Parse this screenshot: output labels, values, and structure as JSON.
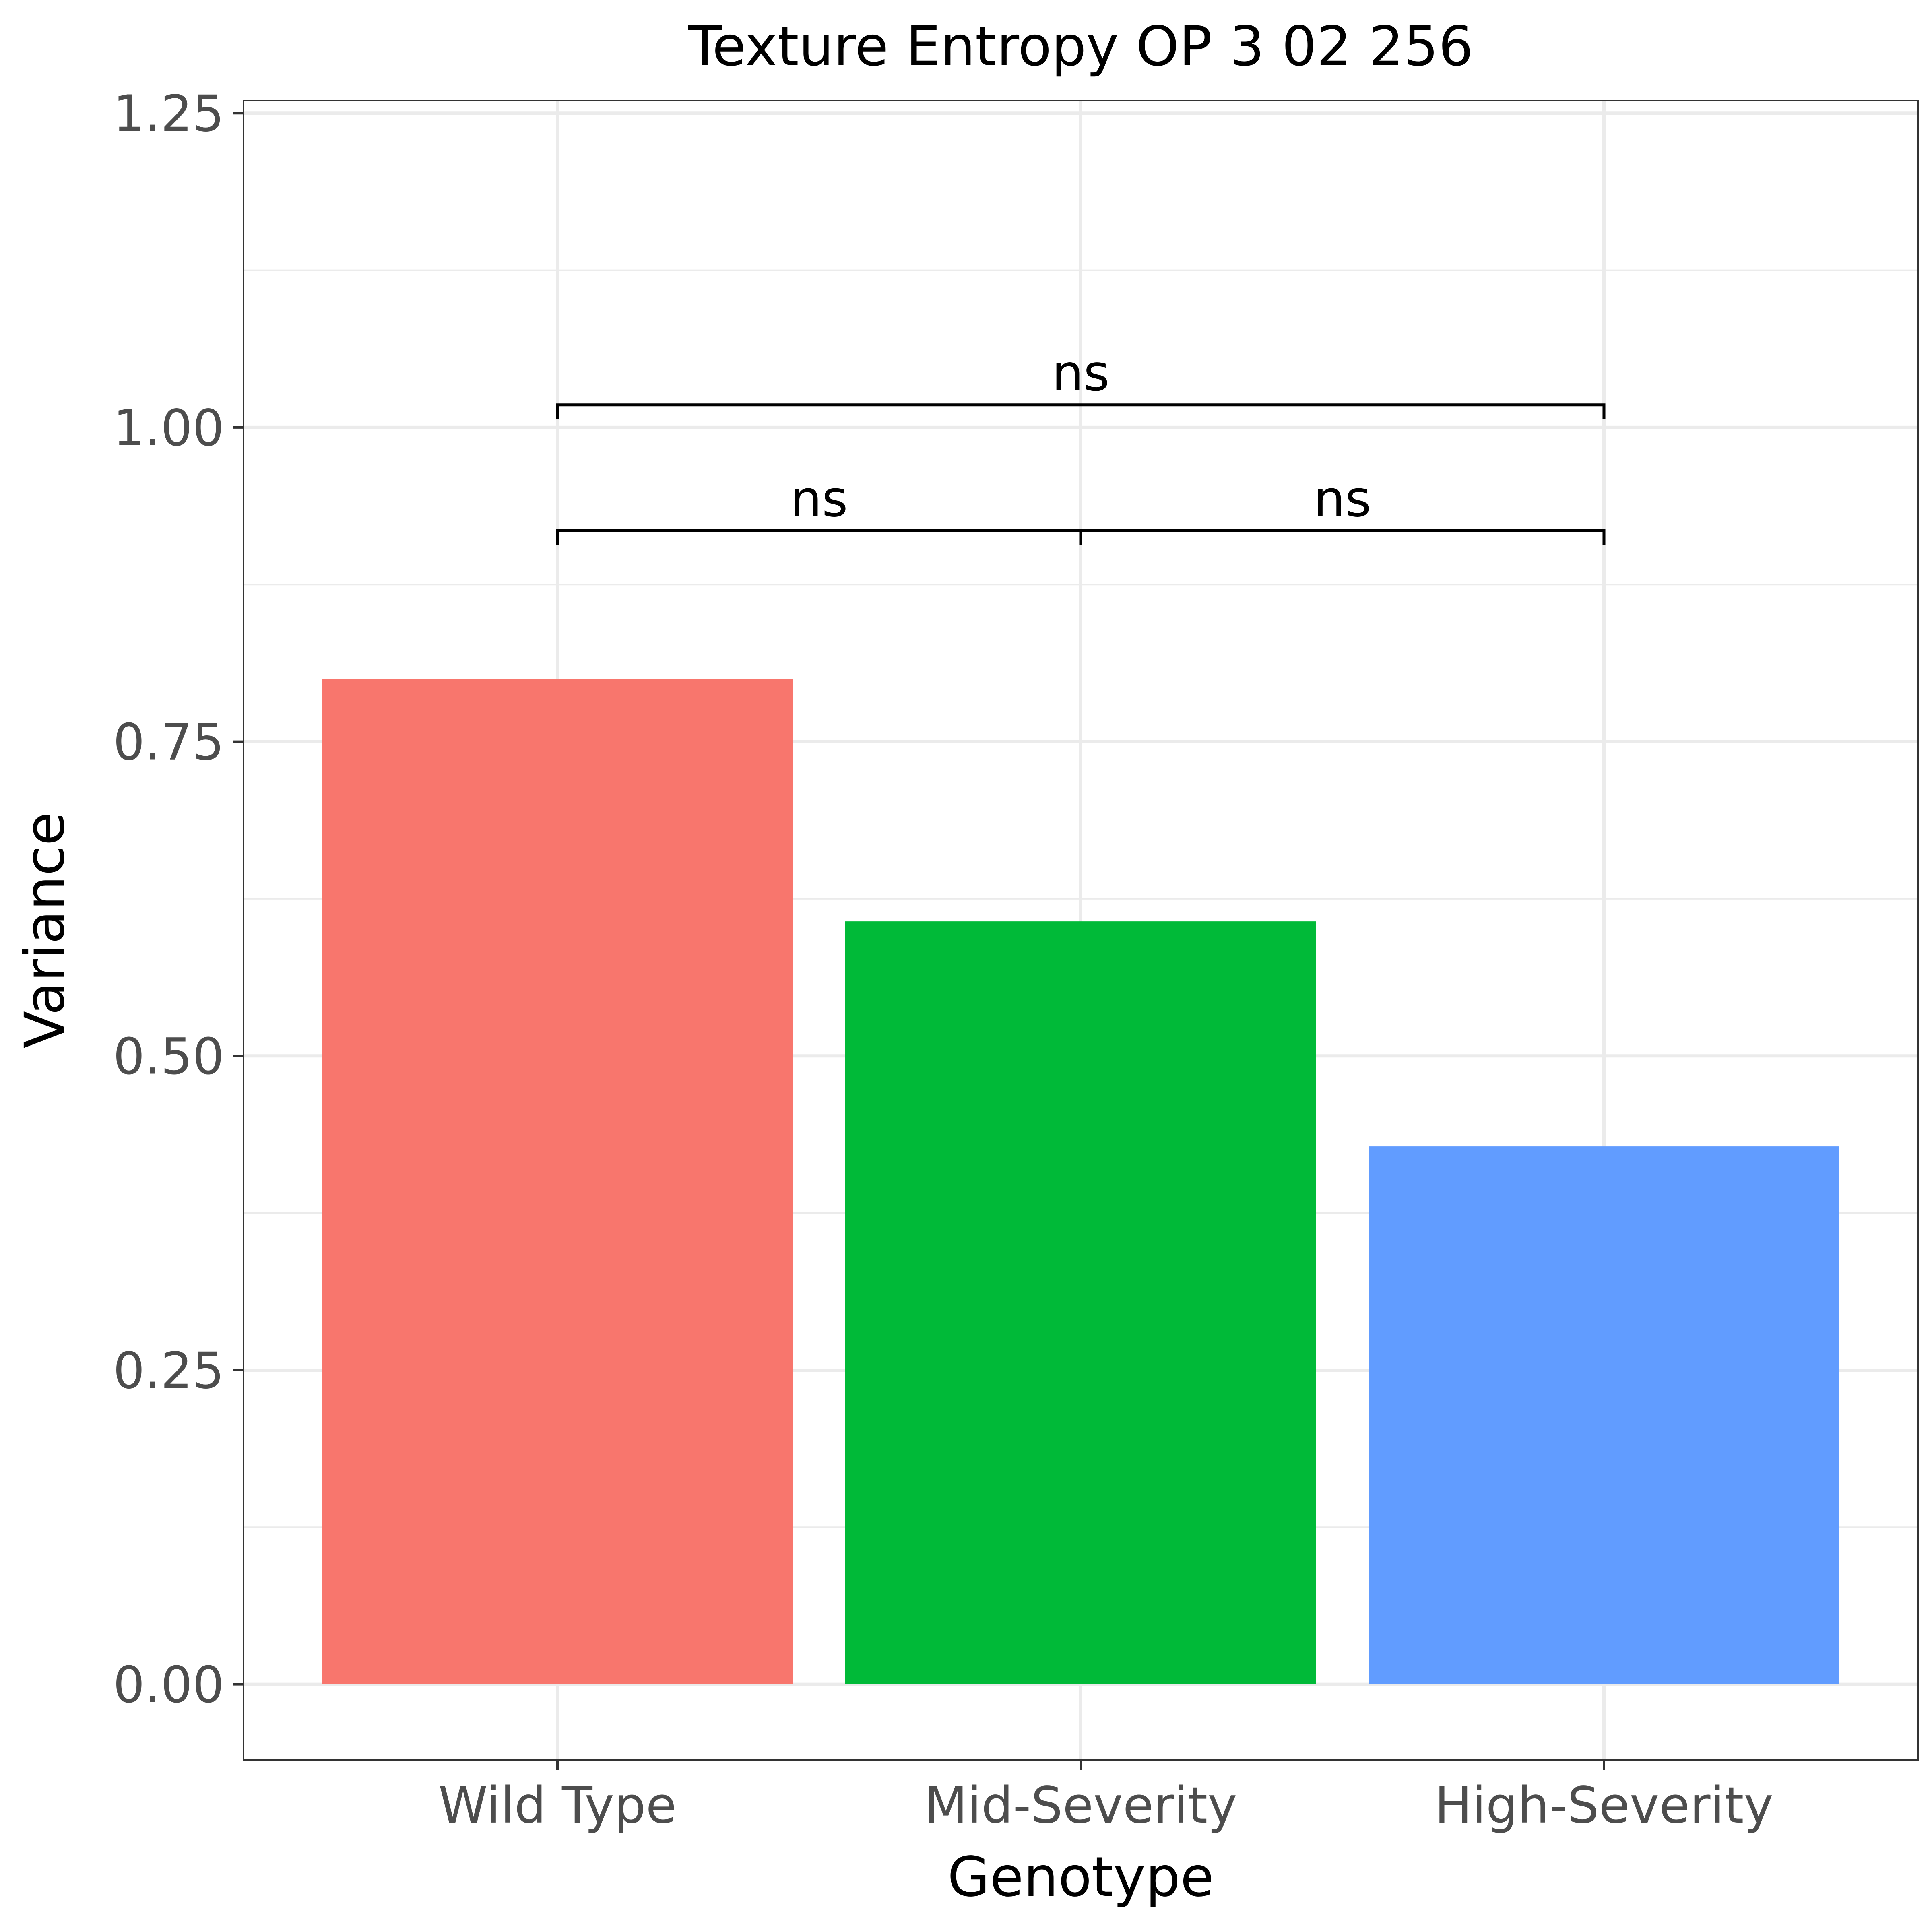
{
  "chart_data": {
    "type": "bar",
    "title": "Texture Entropy OP 3 02 256",
    "xlabel": "Genotype",
    "ylabel": "Variance",
    "categories": [
      "Wild Type",
      "Mid-Severity",
      "High-Severity"
    ],
    "values": [
      0.8,
      0.607,
      0.428
    ],
    "colors": [
      "#F8766D",
      "#00BA38",
      "#619CFF"
    ],
    "ylim": [
      -0.06,
      1.26
    ],
    "yticks": [
      0.0,
      0.25,
      0.5,
      0.75,
      1.0,
      1.25
    ],
    "ytick_labels": [
      "0.00",
      "0.25",
      "0.50",
      "0.75",
      "1.00",
      "1.25"
    ],
    "grid": true,
    "comparisons": [
      {
        "from": "Wild Type",
        "to": "Mid-Severity",
        "y": 0.918,
        "label": "ns"
      },
      {
        "from": "Mid-Severity",
        "to": "High-Severity",
        "y": 0.918,
        "label": "ns"
      },
      {
        "from": "Wild Type",
        "to": "High-Severity",
        "y": 1.018,
        "label": "ns"
      }
    ]
  }
}
